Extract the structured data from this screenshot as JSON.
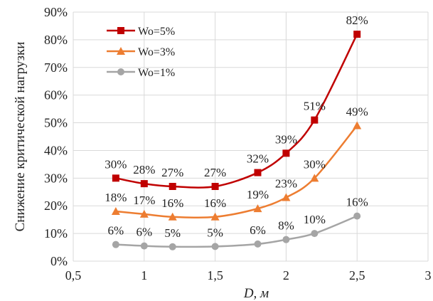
{
  "chart_data": {
    "type": "line",
    "title": "",
    "xlabel": "D, м",
    "ylabel": "Снижение критической нагрузки",
    "xlim": [
      0.5,
      3
    ],
    "ylim": [
      0,
      0.9
    ],
    "x_ticks": [
      "0,5",
      "1",
      "1,5",
      "2",
      "2,5",
      "3"
    ],
    "y_ticks": [
      "0%",
      "10%",
      "20%",
      "30%",
      "40%",
      "50%",
      "60%",
      "70%",
      "80%",
      "90%"
    ],
    "grid": true,
    "legend_position": "top-left",
    "series": [
      {
        "name": "Wo=5%",
        "color": "#c00000",
        "marker": "square",
        "x": [
          0.8,
          1.0,
          1.2,
          1.5,
          1.8,
          2.0,
          2.2,
          2.5
        ],
        "values": [
          0.3,
          0.28,
          0.27,
          0.27,
          0.32,
          0.39,
          0.51,
          0.82
        ],
        "labels": [
          "30%",
          "28%",
          "27%",
          "27%",
          "32%",
          "39%",
          "51%",
          "82%"
        ]
      },
      {
        "name": "Wo=3%",
        "color": "#ed7d31",
        "marker": "triangle",
        "x": [
          0.8,
          1.0,
          1.2,
          1.5,
          1.8,
          2.0,
          2.2,
          2.5
        ],
        "values": [
          0.18,
          0.17,
          0.16,
          0.16,
          0.19,
          0.23,
          0.3,
          0.49
        ],
        "labels": [
          "18%",
          "17%",
          "16%",
          "16%",
          "19%",
          "23%",
          "30%",
          "49%"
        ]
      },
      {
        "name": "Wo=1%",
        "color": "#a5a5a5",
        "marker": "circle",
        "x": [
          0.8,
          1.0,
          1.2,
          1.5,
          1.8,
          2.0,
          2.2,
          2.5
        ],
        "values": [
          0.06,
          0.055,
          0.052,
          0.053,
          0.062,
          0.078,
          0.1,
          0.163
        ],
        "labels": [
          "6%",
          "6%",
          "5%",
          "5%",
          "6%",
          "8%",
          "10%",
          "16%"
        ]
      }
    ]
  }
}
